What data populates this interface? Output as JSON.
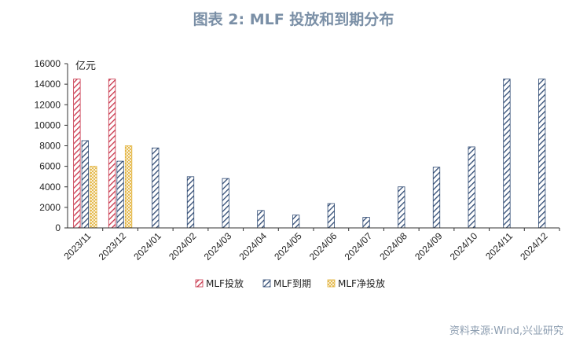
{
  "title": "图表 2:  MLF 投放和到期分布",
  "source": "资料来源:Wind,兴业研究",
  "chart_data": {
    "type": "bar",
    "unit_label": "亿元",
    "categories": [
      "2023/11",
      "2023/12",
      "2024/01",
      "2024/02",
      "2024/03",
      "2024/04",
      "2024/05",
      "2024/06",
      "2024/07",
      "2024/08",
      "2024/09",
      "2024/10",
      "2024/11",
      "2024/12"
    ],
    "series": [
      {
        "name": "MLF投放",
        "color": "#c8344a",
        "values": [
          14500,
          14500,
          null,
          null,
          null,
          null,
          null,
          null,
          null,
          null,
          null,
          null,
          null,
          null
        ]
      },
      {
        "name": "MLF到期",
        "color": "#2f4a73",
        "values": [
          8500,
          6500,
          7790,
          4990,
          4810,
          1700,
          1250,
          2370,
          1030,
          4000,
          5910,
          7890,
          14500,
          14500
        ]
      },
      {
        "name": "MLF净投放",
        "color": "#e2b23a",
        "values": [
          6000,
          8000,
          null,
          null,
          null,
          null,
          null,
          null,
          null,
          null,
          null,
          null,
          null,
          null
        ]
      }
    ],
    "ylim": [
      0,
      16000
    ],
    "yticks": [
      0,
      2000,
      4000,
      6000,
      8000,
      10000,
      12000,
      14000,
      16000
    ],
    "legend_position": "bottom"
  }
}
